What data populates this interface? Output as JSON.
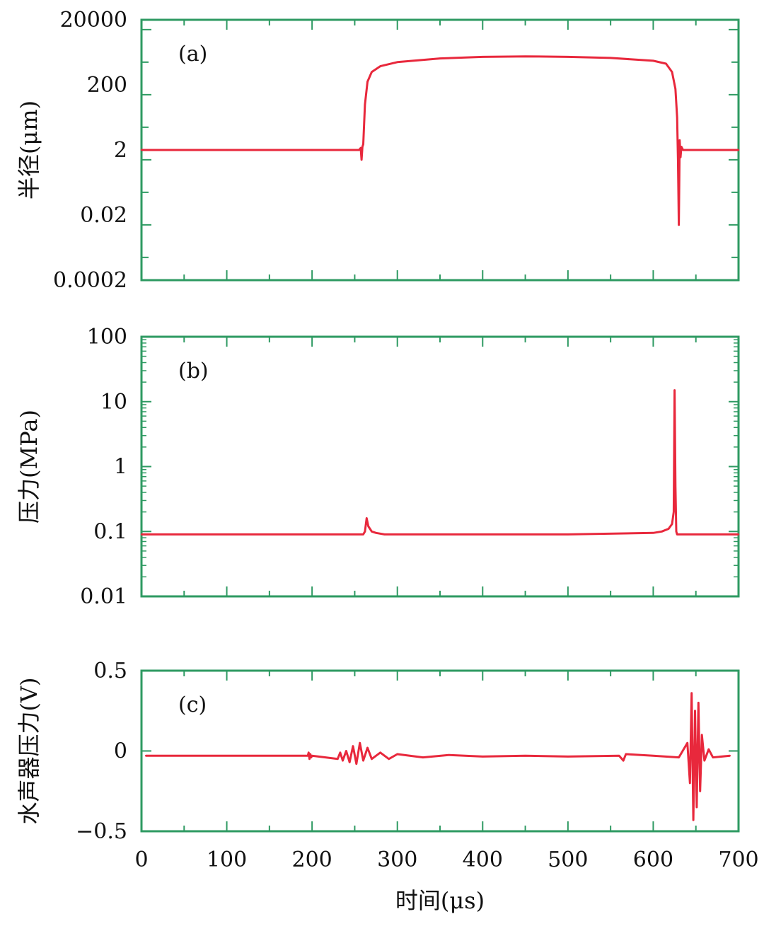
{
  "colors": {
    "frame": "#2e9a62",
    "trace": "#e8283c",
    "text": "#111111"
  },
  "xlabel": "时间(μs)",
  "chart_data": [
    {
      "type": "line",
      "panel_label": "(a)",
      "ylabel": "半径(μm)",
      "yscale": "log",
      "xlim": [
        0,
        700
      ],
      "ylim": [
        0.0002,
        20000
      ],
      "xticks": [
        "0",
        "100",
        "200",
        "300",
        "400",
        "500",
        "600",
        "700"
      ],
      "yticks": [
        "20000",
        "200",
        "2",
        "0.02",
        "0.0002"
      ],
      "series": [
        {
          "x": [
            0,
            100,
            200,
            255,
            257,
            258,
            259,
            260,
            262,
            265,
            270,
            280,
            300,
            350,
            400,
            450,
            500,
            550,
            600,
            615,
            622,
            626,
            628,
            629,
            630,
            631,
            632,
            633,
            635,
            640,
            700
          ],
          "y": [
            2,
            2,
            2,
            2,
            2.3,
            1.0,
            2.5,
            3,
            50,
            250,
            500,
            750,
            1000,
            1300,
            1450,
            1500,
            1450,
            1350,
            1100,
            900,
            500,
            150,
            20,
            1,
            0.01,
            4,
            1.2,
            2.5,
            2,
            2,
            2
          ]
        }
      ]
    },
    {
      "type": "line",
      "panel_label": "(b)",
      "ylabel": "压力(MPa)",
      "yscale": "log",
      "xlim": [
        0,
        700
      ],
      "ylim": [
        0.01,
        100
      ],
      "xticks": [
        "0",
        "100",
        "200",
        "300",
        "400",
        "500",
        "600",
        "700"
      ],
      "yticks": [
        "100",
        "10",
        "1",
        "0.1",
        "0.01"
      ],
      "series": [
        {
          "x": [
            0,
            100,
            200,
            260,
            262,
            264,
            266,
            270,
            275,
            285,
            300,
            400,
            500,
            600,
            610,
            618,
            622,
            624,
            625,
            626,
            627,
            628,
            700
          ],
          "y": [
            0.09,
            0.09,
            0.09,
            0.09,
            0.1,
            0.16,
            0.12,
            0.1,
            0.095,
            0.09,
            0.09,
            0.09,
            0.09,
            0.095,
            0.1,
            0.11,
            0.13,
            0.2,
            15,
            0.5,
            0.1,
            0.09,
            0.09
          ]
        }
      ]
    },
    {
      "type": "line",
      "panel_label": "(c)",
      "ylabel": "水声器压力(V)",
      "yscale": "linear",
      "xlim": [
        0,
        700
      ],
      "ylim": [
        -0.5,
        0.5
      ],
      "xticks": [
        "0",
        "100",
        "200",
        "300",
        "400",
        "500",
        "600",
        "700"
      ],
      "yticks": [
        "0.5",
        "0",
        "−0.5"
      ],
      "yvalues": [
        0.5,
        0,
        -0.5
      ],
      "series": [
        {
          "x": [
            5,
            195,
            196,
            197,
            198,
            199,
            200,
            230,
            233,
            236,
            240,
            244,
            248,
            252,
            256,
            260,
            265,
            270,
            280,
            290,
            300,
            330,
            360,
            400,
            450,
            500,
            560,
            565,
            568,
            600,
            630,
            640,
            643,
            645,
            647,
            649,
            651,
            653,
            655,
            657,
            660,
            665,
            670,
            690
          ],
          "y": [
            -0.03,
            -0.03,
            -0.01,
            -0.05,
            -0.02,
            -0.04,
            -0.03,
            -0.05,
            -0.01,
            -0.06,
            0.0,
            -0.07,
            0.03,
            -0.08,
            0.05,
            -0.06,
            0.02,
            -0.05,
            -0.01,
            -0.05,
            -0.02,
            -0.04,
            -0.025,
            -0.035,
            -0.03,
            -0.035,
            -0.03,
            -0.06,
            -0.02,
            -0.03,
            -0.04,
            0.05,
            -0.2,
            0.36,
            -0.43,
            0.25,
            -0.35,
            0.3,
            -0.25,
            0.1,
            -0.06,
            0.01,
            -0.04,
            -0.03
          ]
        }
      ]
    }
  ]
}
